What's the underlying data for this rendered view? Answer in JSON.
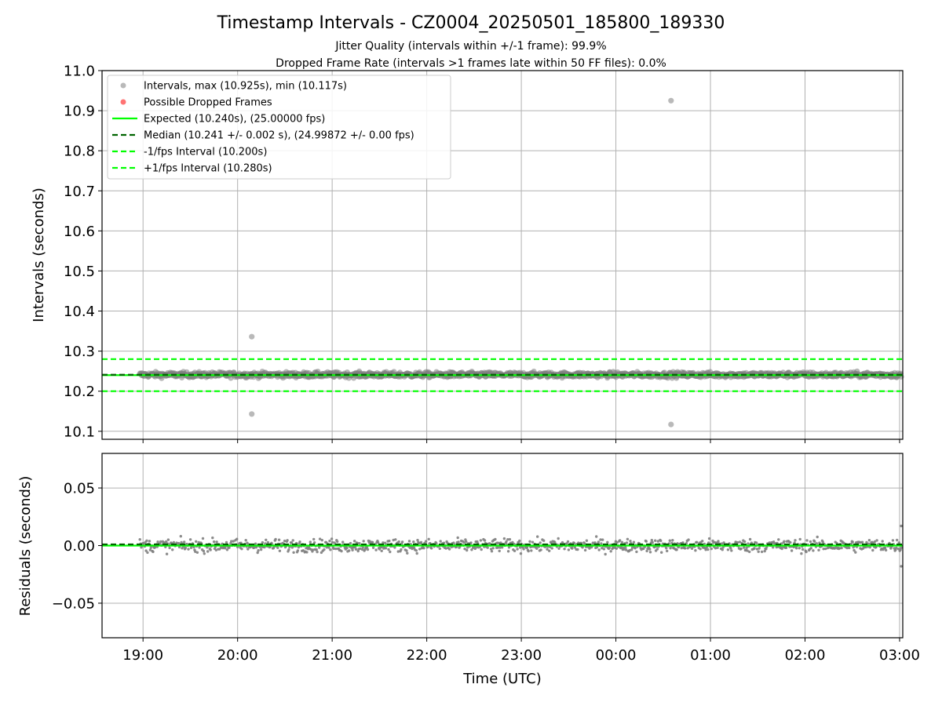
{
  "title": "Timestamp Intervals - CZ0004_20250501_185800_189330",
  "subtitle_1": "Jitter Quality (intervals within +/-1 frame): 99.9%",
  "subtitle_2": "Dropped Frame Rate (intervals >1 frames late within 50 FF files): 0.0%",
  "colors": {
    "points": "#808080",
    "dropped": "#ff0000",
    "expected": "#00ff00",
    "median": "#006400",
    "bound": "#00ff00",
    "grid": "#b0b0b0",
    "legend_border": "#cccccc"
  },
  "chart_data": [
    {
      "type": "scatter",
      "ylabel": "Intervals (seconds)",
      "ylim": [
        10.08,
        11.0
      ],
      "yticks": [
        "10.1",
        "10.2",
        "10.3",
        "10.4",
        "10.5",
        "10.6",
        "10.7",
        "10.8",
        "10.9",
        "11.0"
      ],
      "ytick_values": [
        10.1,
        10.2,
        10.3,
        10.4,
        10.5,
        10.6,
        10.7,
        10.8,
        10.9,
        11.0
      ],
      "grid": true,
      "legend_position": "top-left",
      "legend": [
        {
          "label": "Intervals, max (10.925s), min (10.117s)",
          "kind": "marker",
          "color": "#808080"
        },
        {
          "label": "Possible Dropped Frames",
          "kind": "marker",
          "color": "#ff0000"
        },
        {
          "label": "Expected (10.240s), (25.00000 fps)",
          "kind": "solid",
          "color": "#00ff00"
        },
        {
          "label": "Median (10.241 +/- 0.002 s), (24.99872 +/- 0.00 fps)",
          "kind": "dashed",
          "color": "#006400"
        },
        {
          "label": "-1/fps Interval (10.200s)",
          "kind": "dashed",
          "color": "#00ff00"
        },
        {
          "label": "+1/fps Interval (10.280s)",
          "kind": "dashed",
          "color": "#00ff00"
        }
      ],
      "hlines": [
        {
          "name": "Expected",
          "y": 10.24,
          "style": "solid",
          "color": "#00ff00"
        },
        {
          "name": "Median",
          "y": 10.241,
          "style": "dashed",
          "color": "#006400"
        },
        {
          "name": "-1/fps",
          "y": 10.2,
          "style": "dashed",
          "color": "#00ff00"
        },
        {
          "name": "+1/fps",
          "y": 10.28,
          "style": "dashed",
          "color": "#00ff00"
        }
      ],
      "band": {
        "x_start": "18:58",
        "x_end": "03:01",
        "center": 10.241,
        "spread": 0.006
      },
      "outliers": [
        {
          "x": "20:09",
          "y": 10.336
        },
        {
          "x": "20:09",
          "y": 10.143
        },
        {
          "x": "00:35",
          "y": 10.925
        },
        {
          "x": "00:35",
          "y": 10.117
        }
      ]
    },
    {
      "type": "scatter",
      "ylabel": "Residuals (seconds)",
      "ylim": [
        -0.08,
        0.08
      ],
      "yticks": [
        "0.05",
        "0.00",
        "−0.05"
      ],
      "ytick_values": [
        0.05,
        0.0,
        -0.05
      ],
      "grid": true,
      "hlines": [
        {
          "name": "zero",
          "y": 0.0,
          "style": "solid",
          "color": "#00ff00"
        },
        {
          "name": "median",
          "y": 0.001,
          "style": "dashed",
          "color": "#006400"
        }
      ],
      "band": {
        "x_start": "18:58",
        "x_end": "03:01",
        "center": 0.0,
        "spread": 0.005
      },
      "outliers": [
        {
          "x": "03:01",
          "y": 0.017
        },
        {
          "x": "03:01",
          "y": -0.018
        }
      ]
    }
  ],
  "xaxis": {
    "label": "Time (UTC)",
    "xlim": [
      "18:34",
      "03:02"
    ],
    "ticks": [
      "19:00",
      "20:00",
      "21:00",
      "22:00",
      "23:00",
      "00:00",
      "01:00",
      "02:00",
      "03:00"
    ]
  }
}
